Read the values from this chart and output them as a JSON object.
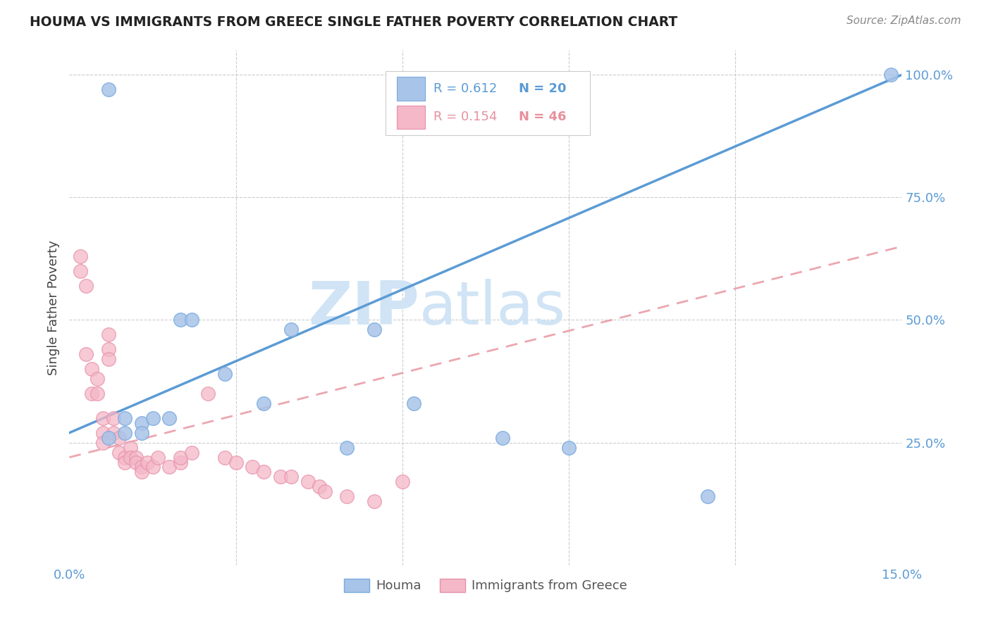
{
  "title": "HOUMA VS IMMIGRANTS FROM GREECE SINGLE FATHER POVERTY CORRELATION CHART",
  "source": "Source: ZipAtlas.com",
  "ylabel": "Single Father Poverty",
  "xmin": 0.0,
  "xmax": 0.15,
  "ymin": 0.0,
  "ymax": 1.05,
  "blue_color": "#a8c4e8",
  "pink_color": "#f4b8c8",
  "blue_edge_color": "#7aabe0",
  "pink_edge_color": "#e890a8",
  "blue_line_color": "#5b9bd5",
  "pink_line_color": "#e8909c",
  "watermark_color": "#d0e4f5",
  "houma_x": [
    0.007,
    0.007,
    0.01,
    0.01,
    0.013,
    0.013,
    0.015,
    0.018,
    0.02,
    0.022,
    0.028,
    0.035,
    0.04,
    0.05,
    0.055,
    0.062,
    0.078,
    0.09,
    0.115,
    0.148
  ],
  "houma_y": [
    0.97,
    0.26,
    0.3,
    0.27,
    0.29,
    0.27,
    0.3,
    0.3,
    0.5,
    0.5,
    0.39,
    0.33,
    0.48,
    0.24,
    0.48,
    0.33,
    0.26,
    0.24,
    0.14,
    1.0
  ],
  "greece_x": [
    0.002,
    0.002,
    0.003,
    0.003,
    0.004,
    0.004,
    0.005,
    0.005,
    0.006,
    0.006,
    0.006,
    0.007,
    0.007,
    0.007,
    0.008,
    0.008,
    0.009,
    0.009,
    0.01,
    0.01,
    0.011,
    0.011,
    0.012,
    0.012,
    0.013,
    0.013,
    0.014,
    0.015,
    0.016,
    0.018,
    0.02,
    0.02,
    0.022,
    0.025,
    0.028,
    0.03,
    0.033,
    0.035,
    0.038,
    0.04,
    0.043,
    0.045,
    0.046,
    0.05,
    0.055,
    0.06
  ],
  "greece_y": [
    0.63,
    0.6,
    0.57,
    0.43,
    0.4,
    0.35,
    0.38,
    0.35,
    0.3,
    0.27,
    0.25,
    0.47,
    0.44,
    0.42,
    0.3,
    0.27,
    0.26,
    0.23,
    0.22,
    0.21,
    0.24,
    0.22,
    0.22,
    0.21,
    0.2,
    0.19,
    0.21,
    0.2,
    0.22,
    0.2,
    0.21,
    0.22,
    0.23,
    0.35,
    0.22,
    0.21,
    0.2,
    0.19,
    0.18,
    0.18,
    0.17,
    0.16,
    0.15,
    0.14,
    0.13,
    0.17
  ],
  "legend_blue_R": "R = 0.612",
  "legend_blue_N": "N = 20",
  "legend_pink_R": "R = 0.154",
  "legend_pink_N": "N = 46"
}
